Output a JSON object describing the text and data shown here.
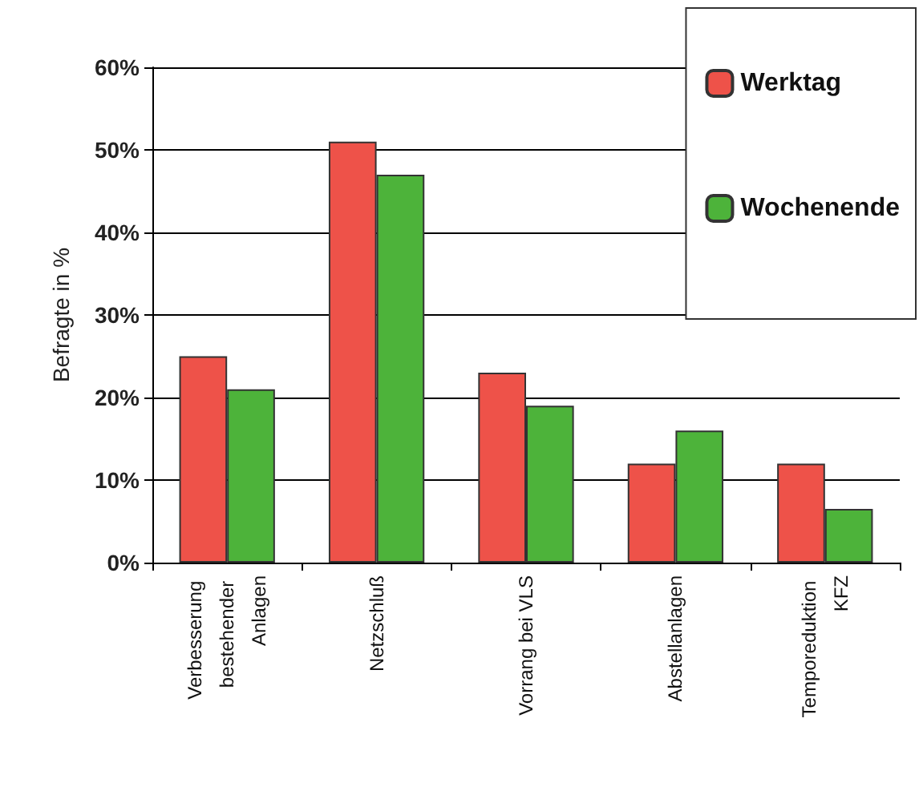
{
  "chart_data": {
    "type": "bar",
    "ylabel": "Befragte in %",
    "categories": [
      "Verbesserung bestehender Anlagen",
      "Netzschluß",
      "Vorrang bei VLS",
      "Abstellanlagen",
      "Temporeduktion KFZ"
    ],
    "series": [
      {
        "name": "Werktag",
        "color": "#ee5249",
        "values": [
          25,
          51,
          23,
          12,
          12
        ]
      },
      {
        "name": "Wochenende",
        "color": "#4db33a",
        "values": [
          21,
          47,
          19,
          16,
          6.5
        ]
      }
    ],
    "ylim": [
      0,
      60
    ],
    "yticks": [
      {
        "value": 0,
        "label": "0%"
      },
      {
        "value": 10,
        "label": "10%"
      },
      {
        "value": 20,
        "label": "20%"
      },
      {
        "value": 30,
        "label": "30%"
      },
      {
        "value": 40,
        "label": "40%"
      },
      {
        "value": 50,
        "label": "50%"
      },
      {
        "value": 60,
        "label": "60%"
      }
    ],
    "grid": "y",
    "legend": "top right"
  }
}
